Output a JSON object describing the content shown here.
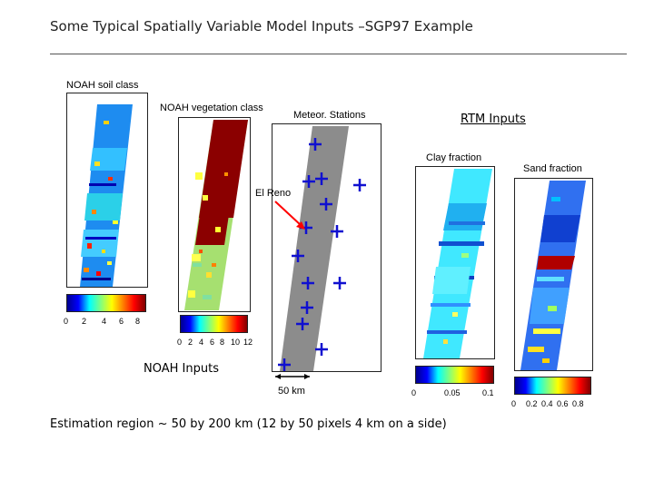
{
  "title": "Some Typical Spatially Variable Model Inputs –SGP97 Example",
  "panels": {
    "soil": {
      "label": "NOAH soil class",
      "ticks": [
        "0",
        "2",
        "4",
        "6",
        "8"
      ]
    },
    "vegetation": {
      "label": "NOAH vegetation class",
      "ticks": [
        "0",
        "2",
        "4",
        "6",
        "8",
        "10",
        "12"
      ]
    },
    "stations": {
      "label": "Meteor. Stations",
      "el_reno_label": "El Reno",
      "scale_label": "50 km"
    },
    "clay": {
      "label": "Clay fraction",
      "ticks": [
        "0",
        "0.05",
        "0.1"
      ]
    },
    "sand": {
      "label": "Sand fraction",
      "ticks": [
        "0",
        "0.2",
        "0.4",
        "0.6",
        "0.8"
      ]
    }
  },
  "group_labels": {
    "noah_inputs": "NOAH Inputs",
    "rtm_inputs": "RTM Inputs"
  },
  "footer": "Estimation region ~ 50 by 200 km (12 by 50 pixels 4 km on a side)",
  "colors": {
    "station_marker": "#1010d0",
    "strip_gray": "#8c8c8c",
    "arrow": "#ff0000",
    "veg_dark": "#8b0000"
  }
}
